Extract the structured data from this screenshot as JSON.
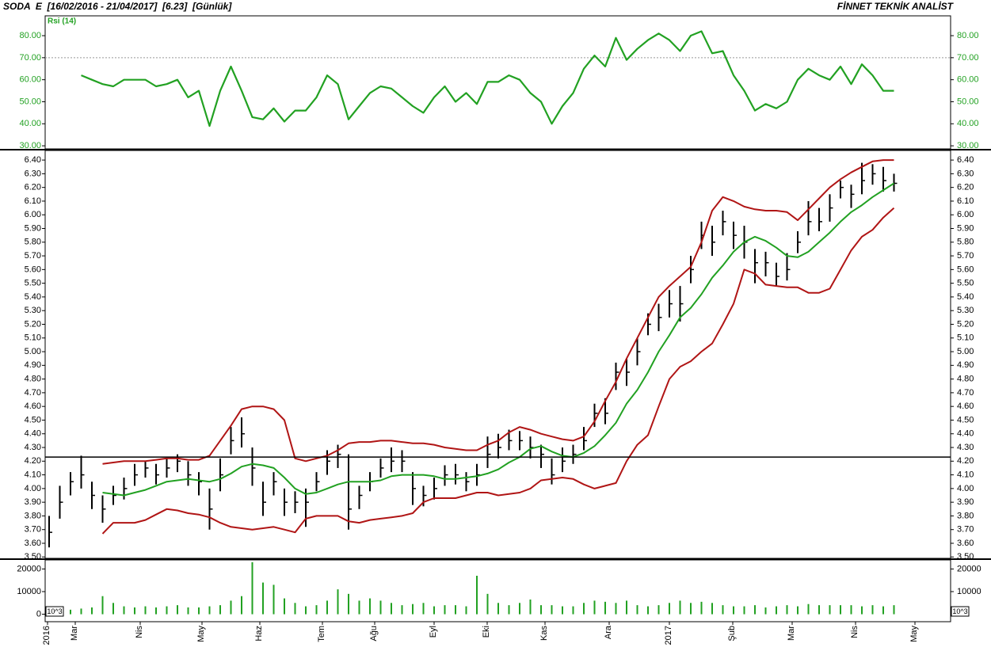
{
  "header": {
    "title": "SODA  E  [16/02/2016 - 21/04/2017]  [6.23]  [Günlük]",
    "brand": "FİNNET TEKNİK ANALİST"
  },
  "chart_data": [
    {
      "type": "line",
      "title": "Rsi (14)",
      "color": "#22a122",
      "reference_line": 70,
      "ylim": [
        28.6,
        89
      ],
      "yticks": [
        {
          "value": 30,
          "label": "30.00"
        },
        {
          "value": 40,
          "label": "40.00"
        },
        {
          "value": 50,
          "label": "50.00"
        },
        {
          "value": 60,
          "label": "60.00"
        },
        {
          "value": 70,
          "label": "70.00"
        },
        {
          "value": 80,
          "label": "80.00"
        }
      ],
      "values": [
        null,
        null,
        null,
        62,
        60,
        58,
        57,
        60,
        60,
        60,
        57,
        58,
        60,
        52,
        55,
        39,
        55,
        66,
        55,
        43,
        42,
        47,
        41,
        46,
        46,
        52,
        62,
        58,
        42,
        48,
        54,
        57,
        56,
        52,
        48,
        45,
        52,
        57,
        50,
        54,
        49,
        59,
        59,
        62,
        60,
        54,
        50,
        40,
        48,
        54,
        65,
        71,
        66,
        79,
        69,
        74,
        78,
        81,
        78,
        73,
        80,
        82,
        72,
        73,
        62,
        55,
        46,
        49,
        47,
        50,
        60,
        65,
        62,
        60,
        66,
        58,
        67,
        62,
        55,
        55
      ]
    },
    {
      "type": "ohlc",
      "color": "#000000",
      "band_color": "#b01515",
      "middle_color": "#22a122",
      "hline": 4.23,
      "ylim": [
        3.49,
        6.47
      ],
      "yticks": [
        {
          "value": 3.5,
          "label": "3.50"
        },
        {
          "value": 3.6,
          "label": "3.60"
        },
        {
          "value": 3.7,
          "label": "3.70"
        },
        {
          "value": 3.8,
          "label": "3.80"
        },
        {
          "value": 3.9,
          "label": "3.90"
        },
        {
          "value": 4.0,
          "label": "4.00"
        },
        {
          "value": 4.1,
          "label": "4.10"
        },
        {
          "value": 4.2,
          "label": "4.20"
        },
        {
          "value": 4.3,
          "label": "4.30"
        },
        {
          "value": 4.4,
          "label": "4.40"
        },
        {
          "value": 4.5,
          "label": "4.50"
        },
        {
          "value": 4.6,
          "label": "4.60"
        },
        {
          "value": 4.7,
          "label": "4.70"
        },
        {
          "value": 4.8,
          "label": "4.80"
        },
        {
          "value": 4.9,
          "label": "4.90"
        },
        {
          "value": 5.0,
          "label": "5.00"
        },
        {
          "value": 5.1,
          "label": "5.10"
        },
        {
          "value": 5.2,
          "label": "5.20"
        },
        {
          "value": 5.3,
          "label": "5.30"
        },
        {
          "value": 5.4,
          "label": "5.40"
        },
        {
          "value": 5.5,
          "label": "5.50"
        },
        {
          "value": 5.6,
          "label": "5.60"
        },
        {
          "value": 5.7,
          "label": "5.70"
        },
        {
          "value": 5.8,
          "label": "5.80"
        },
        {
          "value": 5.9,
          "label": "5.90"
        },
        {
          "value": 6.0,
          "label": "6.00"
        },
        {
          "value": 6.1,
          "label": "6.10"
        },
        {
          "value": 6.2,
          "label": "6.20"
        },
        {
          "value": 6.3,
          "label": "6.30"
        },
        {
          "value": 6.4,
          "label": "6.40"
        }
      ],
      "high": [
        3.8,
        4.02,
        4.12,
        4.24,
        4.05,
        3.95,
        4.02,
        4.08,
        4.18,
        4.2,
        4.18,
        4.22,
        4.25,
        4.2,
        4.12,
        4.0,
        4.22,
        4.45,
        4.52,
        4.3,
        4.05,
        4.12,
        4.0,
        3.98,
        4.0,
        4.12,
        4.28,
        4.32,
        4.25,
        4.02,
        4.12,
        4.22,
        4.3,
        4.28,
        4.12,
        4.02,
        4.08,
        4.17,
        4.18,
        4.12,
        4.18,
        4.38,
        4.4,
        4.43,
        4.42,
        4.38,
        4.32,
        4.22,
        4.3,
        4.32,
        4.45,
        4.62,
        4.66,
        4.92,
        4.95,
        5.1,
        5.28,
        5.35,
        5.45,
        5.48,
        5.7,
        5.95,
        5.92,
        6.03,
        5.95,
        5.92,
        5.75,
        5.73,
        5.65,
        5.72,
        5.88,
        6.1,
        6.05,
        6.15,
        6.25,
        6.22,
        6.38,
        6.37,
        6.35,
        6.3
      ],
      "low": [
        3.57,
        3.78,
        3.95,
        4.0,
        3.85,
        3.75,
        3.88,
        3.92,
        4.02,
        4.08,
        4.03,
        4.08,
        4.12,
        4.02,
        3.95,
        3.7,
        3.98,
        4.25,
        4.3,
        4.02,
        3.8,
        3.95,
        3.8,
        3.82,
        3.72,
        3.98,
        4.1,
        4.15,
        3.7,
        3.85,
        3.98,
        4.08,
        4.12,
        4.12,
        3.88,
        3.87,
        3.92,
        4.02,
        4.03,
        3.98,
        4.02,
        4.15,
        4.22,
        4.28,
        4.28,
        4.22,
        4.15,
        4.03,
        4.12,
        4.18,
        4.28,
        4.45,
        4.47,
        4.72,
        4.75,
        4.9,
        5.12,
        5.15,
        5.25,
        5.22,
        5.5,
        5.75,
        5.7,
        5.85,
        5.75,
        5.68,
        5.5,
        5.55,
        5.48,
        5.52,
        5.72,
        5.85,
        5.88,
        5.95,
        6.12,
        6.05,
        6.15,
        6.22,
        6.17,
        6.17
      ],
      "close": [
        3.68,
        3.9,
        4.05,
        4.1,
        3.95,
        3.85,
        3.95,
        4.0,
        4.1,
        4.15,
        4.1,
        4.15,
        4.2,
        4.1,
        4.05,
        3.85,
        4.1,
        4.35,
        4.4,
        4.15,
        3.9,
        4.05,
        3.9,
        3.9,
        3.9,
        4.05,
        4.2,
        4.25,
        3.85,
        3.95,
        4.05,
        4.15,
        4.2,
        4.2,
        4.0,
        3.95,
        4.0,
        4.1,
        4.1,
        4.05,
        4.1,
        4.25,
        4.3,
        4.35,
        4.35,
        4.3,
        4.25,
        4.1,
        4.2,
        4.25,
        4.35,
        4.55,
        4.55,
        4.85,
        4.85,
        5.0,
        5.2,
        5.25,
        5.35,
        5.35,
        5.6,
        5.85,
        5.8,
        5.95,
        5.85,
        5.8,
        5.65,
        5.65,
        5.55,
        5.6,
        5.8,
        5.95,
        5.95,
        6.05,
        6.2,
        6.15,
        6.25,
        6.3,
        6.25,
        6.23
      ],
      "upper": [
        null,
        null,
        null,
        null,
        null,
        4.18,
        4.19,
        4.2,
        4.2,
        4.2,
        4.21,
        4.22,
        4.22,
        4.21,
        4.21,
        4.24,
        4.35,
        4.46,
        4.58,
        4.6,
        4.6,
        4.58,
        4.5,
        4.22,
        4.2,
        4.22,
        4.24,
        4.28,
        4.33,
        4.34,
        4.34,
        4.35,
        4.35,
        4.34,
        4.33,
        4.33,
        4.32,
        4.3,
        4.29,
        4.28,
        4.28,
        4.32,
        4.35,
        4.41,
        4.45,
        4.43,
        4.4,
        4.38,
        4.36,
        4.35,
        4.38,
        4.49,
        4.64,
        4.78,
        4.95,
        5.1,
        5.25,
        5.4,
        5.48,
        5.55,
        5.62,
        5.8,
        6.03,
        6.13,
        6.1,
        6.06,
        6.04,
        6.03,
        6.03,
        6.02,
        5.96,
        6.04,
        6.12,
        6.2,
        6.26,
        6.31,
        6.35,
        6.39,
        6.4,
        6.4
      ],
      "middle": [
        null,
        null,
        null,
        null,
        null,
        3.97,
        3.96,
        3.95,
        3.97,
        3.99,
        4.02,
        4.05,
        4.06,
        4.07,
        4.06,
        4.05,
        4.07,
        4.11,
        4.16,
        4.18,
        4.17,
        4.15,
        4.08,
        4.0,
        3.96,
        3.97,
        4.0,
        4.03,
        4.05,
        4.05,
        4.05,
        4.06,
        4.09,
        4.1,
        4.1,
        4.1,
        4.09,
        4.07,
        4.07,
        4.08,
        4.09,
        4.11,
        4.14,
        4.19,
        4.23,
        4.29,
        4.31,
        4.27,
        4.24,
        4.23,
        4.26,
        4.31,
        4.39,
        4.48,
        4.62,
        4.72,
        4.85,
        5.0,
        5.12,
        5.25,
        5.32,
        5.42,
        5.54,
        5.63,
        5.73,
        5.8,
        5.84,
        5.81,
        5.76,
        5.7,
        5.69,
        5.73,
        5.8,
        5.87,
        5.95,
        6.02,
        6.07,
        6.13,
        6.18,
        6.23
      ],
      "lower": [
        null,
        null,
        null,
        null,
        null,
        3.67,
        3.75,
        3.75,
        3.75,
        3.77,
        3.81,
        3.85,
        3.84,
        3.82,
        3.81,
        3.79,
        3.75,
        3.72,
        3.71,
        3.7,
        3.71,
        3.72,
        3.7,
        3.68,
        3.78,
        3.8,
        3.8,
        3.8,
        3.76,
        3.75,
        3.77,
        3.78,
        3.79,
        3.8,
        3.82,
        3.9,
        3.93,
        3.93,
        3.93,
        3.95,
        3.97,
        3.97,
        3.95,
        3.96,
        3.97,
        4.0,
        4.06,
        4.07,
        4.08,
        4.07,
        4.03,
        4.0,
        4.02,
        4.04,
        4.2,
        4.32,
        4.39,
        4.6,
        4.8,
        4.89,
        4.93,
        5.0,
        5.06,
        5.2,
        5.35,
        5.6,
        5.57,
        5.49,
        5.48,
        5.47,
        5.47,
        5.43,
        5.43,
        5.46,
        5.6,
        5.74,
        5.84,
        5.89,
        5.98,
        6.05
      ]
    },
    {
      "type": "bar",
      "color": "#22a122",
      "unit_label": "10^3",
      "ylim": [
        -3300,
        24000
      ],
      "yticks": [
        0,
        10000,
        20000
      ],
      "values": [
        2000,
        2000,
        2000,
        2500,
        3000,
        8000,
        5000,
        3500,
        3000,
        3500,
        3000,
        3500,
        4000,
        3000,
        3000,
        3500,
        4000,
        6000,
        8000,
        23000,
        14000,
        13000,
        7000,
        5000,
        3500,
        4000,
        6000,
        11000,
        9000,
        6000,
        7000,
        6000,
        5000,
        4000,
        4500,
        5000,
        3500,
        4000,
        4000,
        3500,
        17000,
        9000,
        5000,
        4000,
        5000,
        6500,
        4000,
        4000,
        3500,
        3500,
        5000,
        6000,
        5500,
        5000,
        6000,
        4000,
        3500,
        4000,
        5000,
        6000,
        5000,
        5500,
        5000,
        4000,
        3500,
        3500,
        4000,
        3000,
        3500,
        4000,
        3500,
        4500,
        4000,
        4000,
        4000,
        4000,
        3500,
        4000,
        3500,
        4000
      ],
      "x_labels": [
        "2016",
        "Mar",
        "Nis",
        "May",
        "Haz",
        "Tem",
        "Ağu",
        "Eyl",
        "Eki",
        "Kas",
        "Ara",
        "2017",
        "Şub",
        "Mar",
        "Nis",
        "May"
      ]
    }
  ]
}
